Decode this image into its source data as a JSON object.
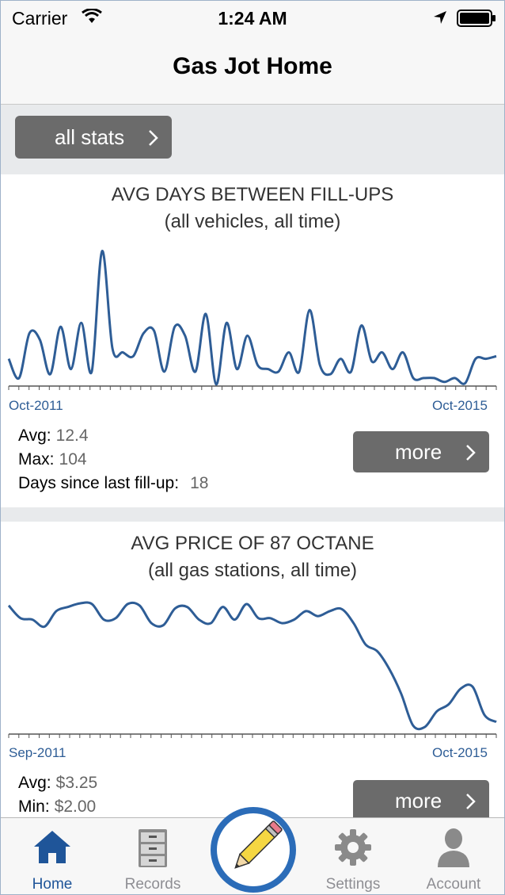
{
  "status_bar": {
    "carrier": "Carrier",
    "time": "1:24 AM"
  },
  "nav": {
    "title": "Gas Jot Home"
  },
  "toolbar": {
    "all_stats_label": "all stats"
  },
  "cards": [
    {
      "title": "AVG DAYS BETWEEN FILL-UPS",
      "subtitle": "(all vehicles, all time)",
      "x_start_label": "Oct-2011",
      "x_end_label": "Oct-2015",
      "stats": [
        {
          "label": "Avg:",
          "value": "12.4"
        },
        {
          "label": "Max:",
          "value": "104"
        },
        {
          "label": "Days since last fill-up:",
          "value": "18"
        }
      ],
      "more_label": "more"
    },
    {
      "title": "AVG PRICE OF 87 OCTANE",
      "subtitle": "(all gas stations, all time)",
      "x_start_label": "Sep-2011",
      "x_end_label": "Oct-2015",
      "stats": [
        {
          "label": "Avg:",
          "value": "$3.25"
        },
        {
          "label": "Min:",
          "value": "$2.00"
        }
      ],
      "more_label": "more"
    }
  ],
  "tabs": [
    {
      "label": "Home",
      "icon": "home-icon",
      "active": true
    },
    {
      "label": "Records",
      "icon": "file-cabinet-icon",
      "active": false
    },
    {
      "label": "Settings",
      "icon": "gear-icon",
      "active": false
    },
    {
      "label": "Account",
      "icon": "person-icon",
      "active": false
    }
  ],
  "center_action": {
    "icon": "pencil-icon"
  },
  "colors": {
    "accent": "#1f5599",
    "chart_line": "#2e5d96",
    "button_gray": "#6b6b6b"
  },
  "chart_data": [
    {
      "type": "line",
      "title": "AVG DAYS BETWEEN FILL-UPS",
      "subtitle": "(all vehicles, all time)",
      "xlabel": "",
      "ylabel": "",
      "x_range": [
        "Oct-2011",
        "Oct-2015"
      ],
      "ylim": [
        0,
        110
      ],
      "grid": false,
      "values": [
        20,
        5,
        40,
        35,
        8,
        45,
        12,
        48,
        10,
        104,
        28,
        25,
        22,
        40,
        42,
        10,
        45,
        38,
        10,
        55,
        0,
        48,
        12,
        38,
        15,
        12,
        10,
        25,
        10,
        58,
        15,
        8,
        20,
        10,
        46,
        18,
        25,
        12,
        25,
        5,
        5,
        5,
        2,
        5,
        1,
        20,
        20,
        22
      ]
    },
    {
      "type": "line",
      "title": "AVG PRICE OF 87 OCTANE",
      "subtitle": "(all gas stations, all time)",
      "xlabel": "",
      "ylabel": "",
      "x_range": [
        "Sep-2011",
        "Oct-2015"
      ],
      "ylim": [
        2.0,
        4.0
      ],
      "grid": false,
      "values": [
        3.8,
        3.62,
        3.6,
        3.5,
        3.72,
        3.78,
        3.83,
        3.82,
        3.6,
        3.62,
        3.82,
        3.8,
        3.55,
        3.52,
        3.76,
        3.78,
        3.6,
        3.55,
        3.78,
        3.6,
        3.82,
        3.62,
        3.62,
        3.55,
        3.6,
        3.72,
        3.65,
        3.72,
        3.75,
        3.55,
        3.25,
        3.15,
        2.9,
        2.55,
        2.1,
        2.08,
        2.3,
        2.4,
        2.62,
        2.65,
        2.25,
        2.15
      ]
    }
  ]
}
